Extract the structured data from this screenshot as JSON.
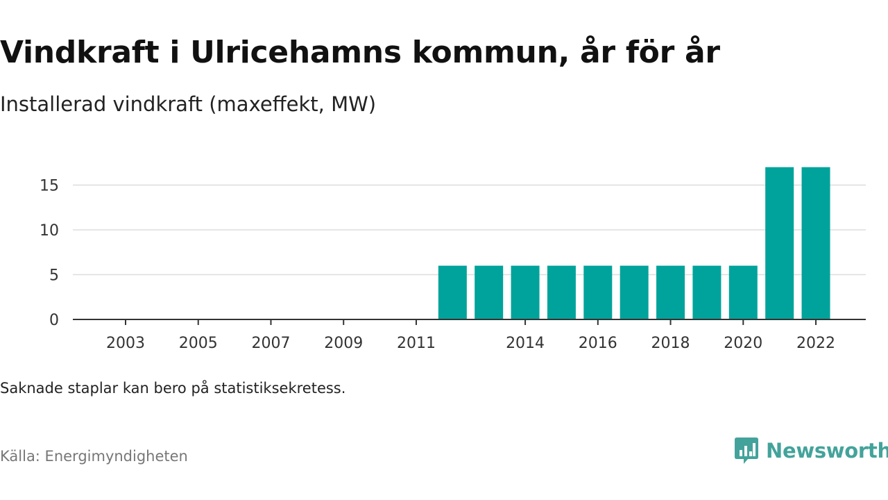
{
  "header": {
    "title": "Vindkraft i Ulricehamns kommun, år för år",
    "subtitle": "Installerad vindkraft (maxeffekt, MW)"
  },
  "footer": {
    "note": "Saknade staplar kan bero på statistiksekretess.",
    "source": "Källa: Energimyndigheten",
    "brand": "Newsworthy"
  },
  "colors": {
    "bar": "#00a39b",
    "grid": "#dddddd",
    "axis": "#333333",
    "brand": "#43a39b"
  },
  "chart_data": {
    "type": "bar",
    "x": [
      2003,
      2004,
      2005,
      2006,
      2007,
      2008,
      2009,
      2010,
      2011,
      2012,
      2013,
      2014,
      2015,
      2016,
      2017,
      2018,
      2019,
      2020,
      2021,
      2022
    ],
    "values": [
      null,
      null,
      null,
      null,
      null,
      null,
      null,
      null,
      null,
      6,
      6,
      6,
      6,
      6,
      6,
      6,
      6,
      6,
      17,
      17
    ],
    "xticks": [
      "2003",
      "2005",
      "2007",
      "2009",
      "2011",
      "2014",
      "2016",
      "2018",
      "2020",
      "2022"
    ],
    "yticks": [
      0,
      5,
      10,
      15
    ],
    "ylim": [
      0,
      17
    ],
    "grid": true,
    "title": "Vindkraft i Ulricehamns kommun, år för år",
    "subtitle": "Installerad vindkraft (maxeffekt, MW)"
  }
}
